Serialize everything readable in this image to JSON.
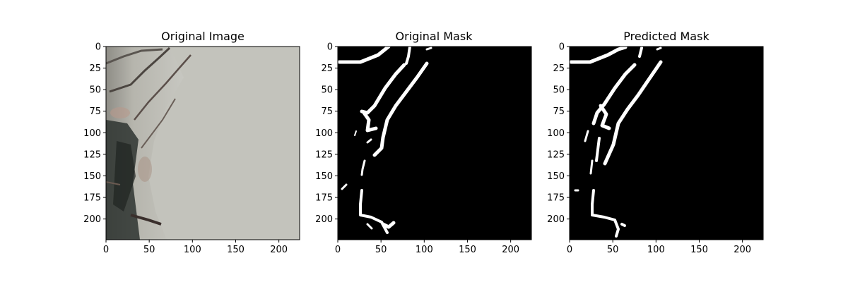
{
  "chart_data": [
    {
      "type": "image",
      "title": "Original Image",
      "xlim": [
        0,
        224
      ],
      "ylim": [
        224,
        0
      ],
      "xticks": [
        0,
        50,
        100,
        150,
        200
      ],
      "yticks": [
        0,
        25,
        50,
        75,
        100,
        125,
        150,
        175,
        200
      ]
    },
    {
      "type": "image",
      "title": "Original Mask",
      "xlim": [
        0,
        224
      ],
      "ylim": [
        224,
        0
      ],
      "xticks": [
        0,
        50,
        100,
        150,
        200
      ],
      "yticks": [
        0,
        25,
        50,
        75,
        100,
        125,
        150,
        175,
        200
      ],
      "background": "#000000",
      "foreground": "#ffffff"
    },
    {
      "type": "image",
      "title": "Predicted Mask",
      "xlim": [
        0,
        224
      ],
      "ylim": [
        224,
        0
      ],
      "xticks": [
        0,
        50,
        100,
        150,
        200
      ],
      "yticks": [
        0,
        25,
        50,
        75,
        100,
        125,
        150,
        175,
        200
      ],
      "background": "#000000",
      "foreground": "#ffffff"
    }
  ]
}
